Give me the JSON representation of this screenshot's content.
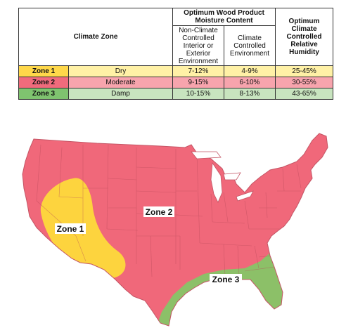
{
  "table": {
    "header": {
      "climate_zone": "Climate Zone",
      "moisture_content": "Optimum Wood Product Moisture Content",
      "non_climate": "Non-Climate Controlled Interior or Exterior Environment",
      "climate_controlled": "Climate Controlled Environment",
      "humidity": "Optimum Climate Controlled Relative Humidity"
    },
    "rows": [
      {
        "zone": "Zone 1",
        "condition": "Dry",
        "non_climate": "7-12%",
        "climate_controlled": "4-9%",
        "humidity": "25-45%"
      },
      {
        "zone": "Zone 2",
        "condition": "Moderate",
        "non_climate": "9-15%",
        "climate_controlled": "6-10%",
        "humidity": "30-55%"
      },
      {
        "zone": "Zone 3",
        "condition": "Damp",
        "non_climate": "10-15%",
        "climate_controlled": "8-13%",
        "humidity": "43-65%"
      }
    ]
  },
  "map": {
    "zone1_label": "Zone 1",
    "zone2_label": "Zone 2",
    "zone3_label": "Zone 3",
    "colors": {
      "zone1": "#fdd43e",
      "zone2": "#f0687a",
      "zone3": "#8cc068",
      "borders": "#b84a5a"
    }
  }
}
